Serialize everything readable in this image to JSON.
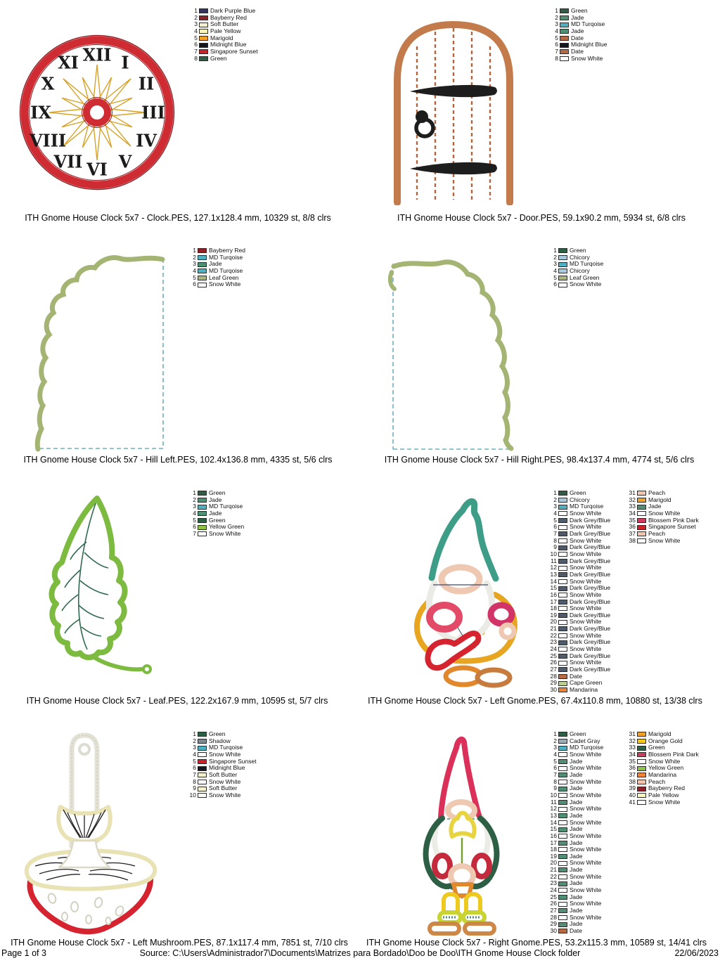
{
  "footer": {
    "page_label": "Page 1 of 3",
    "source_label": "Source: C:\\Users\\Administrador7\\Documents\\Matrizes para Bordado\\Doo be Doo\\ITH Gnome House Clock folder",
    "date_label": "22/06/2023"
  },
  "clock_numerals": [
    "XII",
    "I",
    "II",
    "III",
    "IV",
    "V",
    "VI",
    "VII",
    "VIII",
    "IX",
    "X",
    "XI"
  ],
  "designs": [
    {
      "name": "Clock",
      "caption": "ITH Gnome House Clock 5x7 - Clock.PES, 127.1x128.4 mm, 10329 st, 8/8 clrs",
      "legend": [
        {
          "n": 1,
          "name": "Dark Purple Blue",
          "color": "#343263"
        },
        {
          "n": 2,
          "name": "Bayberry Red",
          "color": "#8e2026"
        },
        {
          "n": 3,
          "name": "Soft Butter",
          "color": "#f5f0ce"
        },
        {
          "n": 4,
          "name": "Pale Yellow",
          "color": "#faf5bb"
        },
        {
          "n": 5,
          "name": "Marigold",
          "color": "#f0a125"
        },
        {
          "n": 6,
          "name": "Midnight Blue",
          "color": "#16161f"
        },
        {
          "n": 7,
          "name": "Singapore Sunset",
          "color": "#cd2229"
        },
        {
          "n": 8,
          "name": "Green",
          "color": "#2e5f45"
        }
      ]
    },
    {
      "name": "Door",
      "caption": "ITH Gnome House Clock 5x7 - Door.PES, 59.1x90.2 mm, 5934 st, 6/8 clrs",
      "legend": [
        {
          "n": 1,
          "name": "Green",
          "color": "#2e5f45"
        },
        {
          "n": 2,
          "name": "Jade",
          "color": "#4f8f74"
        },
        {
          "n": 3,
          "name": "MD Turqoise",
          "color": "#4fb0c2"
        },
        {
          "n": 4,
          "name": "Jade",
          "color": "#4f8f74"
        },
        {
          "n": 5,
          "name": "Date",
          "color": "#b76a41"
        },
        {
          "n": 6,
          "name": "Midnight Blue",
          "color": "#16161f"
        },
        {
          "n": 7,
          "name": "Date",
          "color": "#b76a41"
        },
        {
          "n": 8,
          "name": "Snow White",
          "color": "#ffffff"
        }
      ]
    },
    {
      "name": "Hill Left",
      "caption": "ITH Gnome House Clock 5x7 - Hill Left.PES, 102.4x136.8 mm, 4335 st, 5/6 clrs",
      "legend": [
        {
          "n": 1,
          "name": "Bayberry Red",
          "color": "#8e2026"
        },
        {
          "n": 2,
          "name": "MD Turqoise",
          "color": "#4fb0c2"
        },
        {
          "n": 3,
          "name": "Jade",
          "color": "#4f8f74"
        },
        {
          "n": 4,
          "name": "MD Turqoise",
          "color": "#4fb0c2"
        },
        {
          "n": 5,
          "name": "Leaf Green",
          "color": "#a8b57c"
        },
        {
          "n": 6,
          "name": "Snow White",
          "color": "#ffffff"
        }
      ]
    },
    {
      "name": "Hill Right",
      "caption": "ITH Gnome House Clock 5x7 - Hill Right.PES, 98.4x137.4 mm, 4774 st, 5/6 clrs",
      "legend": [
        {
          "n": 1,
          "name": "Green",
          "color": "#2e5f45"
        },
        {
          "n": 2,
          "name": "Chicory",
          "color": "#a7c9de"
        },
        {
          "n": 3,
          "name": "MD Turqoise",
          "color": "#4fb0c2"
        },
        {
          "n": 4,
          "name": "Chicory",
          "color": "#a7c9de"
        },
        {
          "n": 5,
          "name": "Leaf Green",
          "color": "#a8b57c"
        },
        {
          "n": 6,
          "name": "Snow White",
          "color": "#ffffff"
        }
      ]
    },
    {
      "name": "Leaf",
      "caption": "ITH Gnome House Clock 5x7 - Leaf.PES, 122.2x167.9 mm, 10595 st, 5/7 clrs",
      "legend": [
        {
          "n": 1,
          "name": "Green",
          "color": "#2e5f45"
        },
        {
          "n": 2,
          "name": "Jade",
          "color": "#4f8f74"
        },
        {
          "n": 3,
          "name": "MD Turqoise",
          "color": "#4fb0c2"
        },
        {
          "n": 4,
          "name": "Jade",
          "color": "#4f8f74"
        },
        {
          "n": 5,
          "name": "Green",
          "color": "#2e5f45"
        },
        {
          "n": 6,
          "name": "Yellow Green",
          "color": "#8ec344"
        },
        {
          "n": 7,
          "name": "Snow White",
          "color": "#ffffff"
        }
      ]
    },
    {
      "name": "Left Gnome",
      "caption": "ITH Gnome House Clock 5x7 - Left Gnome.PES, 67.4x110.8 mm, 10880 st, 13/38 clrs",
      "legend": [
        {
          "n": 1,
          "name": "Green",
          "color": "#2e5f45"
        },
        {
          "n": 2,
          "name": "Chicory",
          "color": "#a7c9de"
        },
        {
          "n": 3,
          "name": "MD Turqoise",
          "color": "#4fb0c2"
        },
        {
          "n": 4,
          "name": "Snow White",
          "color": "#ffffff"
        },
        {
          "n": 5,
          "name": "Dark Grey/Blue",
          "color": "#4e5d6d"
        },
        {
          "n": 6,
          "name": "Snow White",
          "color": "#ffffff"
        },
        {
          "n": 7,
          "name": "Dark Grey/Blue",
          "color": "#4e5d6d"
        },
        {
          "n": 8,
          "name": "Snow White",
          "color": "#ffffff"
        },
        {
          "n": 9,
          "name": "Dark Grey/Blue",
          "color": "#4e5d6d"
        },
        {
          "n": 10,
          "name": "Snow White",
          "color": "#ffffff"
        },
        {
          "n": 11,
          "name": "Dark Grey/Blue",
          "color": "#4e5d6d"
        },
        {
          "n": 12,
          "name": "Snow White",
          "color": "#ffffff"
        },
        {
          "n": 13,
          "name": "Dark Grey/Blue",
          "color": "#4e5d6d"
        },
        {
          "n": 14,
          "name": "Snow White",
          "color": "#ffffff"
        },
        {
          "n": 15,
          "name": "Dark Grey/Blue",
          "color": "#4e5d6d"
        },
        {
          "n": 16,
          "name": "Snow White",
          "color": "#ffffff"
        },
        {
          "n": 17,
          "name": "Dark Grey/Blue",
          "color": "#4e5d6d"
        },
        {
          "n": 18,
          "name": "Snow White",
          "color": "#ffffff"
        },
        {
          "n": 19,
          "name": "Dark Grey/Blue",
          "color": "#4e5d6d"
        },
        {
          "n": 20,
          "name": "Snow White",
          "color": "#ffffff"
        },
        {
          "n": 21,
          "name": "Dark Grey/Blue",
          "color": "#4e5d6d"
        },
        {
          "n": 22,
          "name": "Snow White",
          "color": "#ffffff"
        },
        {
          "n": 23,
          "name": "Dark Grey/Blue",
          "color": "#4e5d6d"
        },
        {
          "n": 24,
          "name": "Snow White",
          "color": "#ffffff"
        },
        {
          "n": 25,
          "name": "Dark Grey/Blue",
          "color": "#4e5d6d"
        },
        {
          "n": 26,
          "name": "Snow White",
          "color": "#ffffff"
        },
        {
          "n": 27,
          "name": "Dark Grey/Blue",
          "color": "#4e5d6d"
        },
        {
          "n": 28,
          "name": "Date",
          "color": "#b76a41"
        },
        {
          "n": 29,
          "name": "Cape Green",
          "color": "#bccf92"
        },
        {
          "n": 30,
          "name": "Mandarina",
          "color": "#ef8333"
        },
        {
          "n": 31,
          "name": "Peach",
          "color": "#f3c5ad"
        },
        {
          "n": 32,
          "name": "Marigold",
          "color": "#f0a125"
        },
        {
          "n": 33,
          "name": "Jade",
          "color": "#4f8f74"
        },
        {
          "n": 34,
          "name": "Snow White",
          "color": "#ffffff"
        },
        {
          "n": 35,
          "name": "Blossem Pink Dark",
          "color": "#ce3a60"
        },
        {
          "n": 36,
          "name": "Singapore Sunset",
          "color": "#cd2229"
        },
        {
          "n": 37,
          "name": "Peach",
          "color": "#f3c5ad"
        },
        {
          "n": 38,
          "name": "Snow White",
          "color": "#ffffff"
        }
      ]
    },
    {
      "name": "Left Mushroom",
      "caption": "ITH Gnome House Clock 5x7 - Left Mushroom.PES, 87.1x117.4 mm, 7851 st, 7/10 clrs",
      "legend": [
        {
          "n": 1,
          "name": "Green",
          "color": "#2e5f45"
        },
        {
          "n": 2,
          "name": "Shadow",
          "color": "#80898f"
        },
        {
          "n": 3,
          "name": "MD Turqoise",
          "color": "#4fb0c2"
        },
        {
          "n": 4,
          "name": "Snow White",
          "color": "#ffffff"
        },
        {
          "n": 5,
          "name": "Singapore Sunset",
          "color": "#cd2229"
        },
        {
          "n": 6,
          "name": "Midnight Blue",
          "color": "#16161f"
        },
        {
          "n": 7,
          "name": "Soft Butter",
          "color": "#f5f0ce"
        },
        {
          "n": 8,
          "name": "Snow White",
          "color": "#ffffff"
        },
        {
          "n": 9,
          "name": "Soft Butter",
          "color": "#f5f0ce"
        },
        {
          "n": 10,
          "name": "Snow White",
          "color": "#ffffff"
        }
      ]
    },
    {
      "name": "Right Gnome",
      "caption": "ITH Gnome House Clock 5x7 - Right Gnome.PES, 53.2x115.3 mm, 10589 st, 14/41 clrs",
      "legend": [
        {
          "n": 1,
          "name": "Green",
          "color": "#2e5f45"
        },
        {
          "n": 2,
          "name": "Cadet Gray",
          "color": "#9fabb2"
        },
        {
          "n": 3,
          "name": "MD Turqoise",
          "color": "#4fb0c2"
        },
        {
          "n": 4,
          "name": "Snow White",
          "color": "#ffffff"
        },
        {
          "n": 5,
          "name": "Jade",
          "color": "#4f8f74"
        },
        {
          "n": 6,
          "name": "Snow White",
          "color": "#ffffff"
        },
        {
          "n": 7,
          "name": "Jade",
          "color": "#4f8f74"
        },
        {
          "n": 8,
          "name": "Snow White",
          "color": "#ffffff"
        },
        {
          "n": 9,
          "name": "Jade",
          "color": "#4f8f74"
        },
        {
          "n": 10,
          "name": "Snow White",
          "color": "#ffffff"
        },
        {
          "n": 11,
          "name": "Jade",
          "color": "#4f8f74"
        },
        {
          "n": 12,
          "name": "Snow White",
          "color": "#ffffff"
        },
        {
          "n": 13,
          "name": "Jade",
          "color": "#4f8f74"
        },
        {
          "n": 14,
          "name": "Snow White",
          "color": "#ffffff"
        },
        {
          "n": 15,
          "name": "Jade",
          "color": "#4f8f74"
        },
        {
          "n": 16,
          "name": "Snow White",
          "color": "#ffffff"
        },
        {
          "n": 17,
          "name": "Jade",
          "color": "#4f8f74"
        },
        {
          "n": 18,
          "name": "Snow White",
          "color": "#ffffff"
        },
        {
          "n": 19,
          "name": "Jade",
          "color": "#4f8f74"
        },
        {
          "n": 20,
          "name": "Snow White",
          "color": "#ffffff"
        },
        {
          "n": 21,
          "name": "Jade",
          "color": "#4f8f74"
        },
        {
          "n": 22,
          "name": "Snow White",
          "color": "#ffffff"
        },
        {
          "n": 23,
          "name": "Jade",
          "color": "#4f8f74"
        },
        {
          "n": 24,
          "name": "Snow White",
          "color": "#ffffff"
        },
        {
          "n": 25,
          "name": "Jade",
          "color": "#4f8f74"
        },
        {
          "n": 26,
          "name": "Snow White",
          "color": "#ffffff"
        },
        {
          "n": 27,
          "name": "Jade",
          "color": "#4f8f74"
        },
        {
          "n": 28,
          "name": "Snow White",
          "color": "#ffffff"
        },
        {
          "n": 29,
          "name": "Jade",
          "color": "#4f8f74"
        },
        {
          "n": 30,
          "name": "Date",
          "color": "#b76a41"
        },
        {
          "n": 31,
          "name": "Marigold",
          "color": "#f0a125"
        },
        {
          "n": 32,
          "name": "Orange Gold",
          "color": "#f3c81d"
        },
        {
          "n": 33,
          "name": "Green",
          "color": "#2e5f45"
        },
        {
          "n": 34,
          "name": "Blossem Pink Dark",
          "color": "#ce3a60"
        },
        {
          "n": 35,
          "name": "Snow White",
          "color": "#ffffff"
        },
        {
          "n": 36,
          "name": "Yellow Green",
          "color": "#8ec344"
        },
        {
          "n": 37,
          "name": "Mandarina",
          "color": "#ef8333"
        },
        {
          "n": 38,
          "name": "Peach",
          "color": "#f3c5ad"
        },
        {
          "n": 39,
          "name": "Bayberry Red",
          "color": "#8e2026"
        },
        {
          "n": 40,
          "name": "Pale Yellow",
          "color": "#faf5bb"
        },
        {
          "n": 41,
          "name": "Snow White",
          "color": "#ffffff"
        }
      ]
    }
  ]
}
